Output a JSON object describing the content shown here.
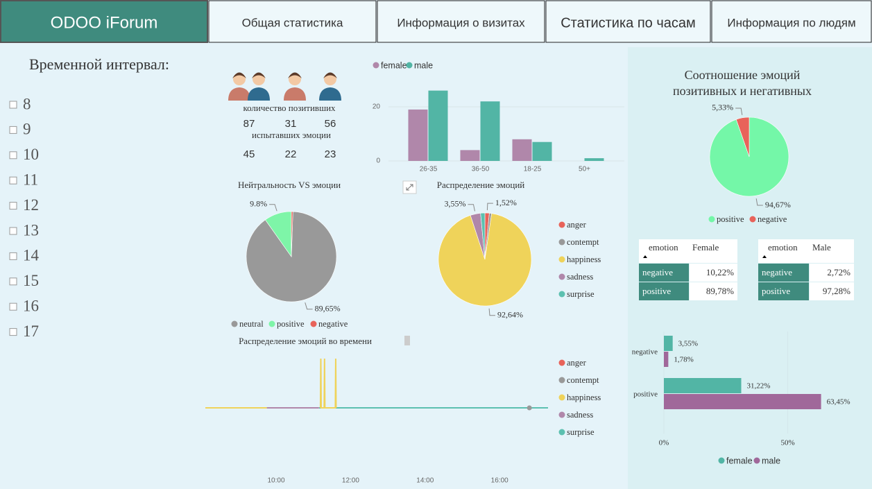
{
  "header": {
    "tabs": [
      "ODOO iForum",
      "Общая статистика",
      "Информация о визитах",
      "Статистика по часам",
      "Информация по людям"
    ]
  },
  "sidebar": {
    "title": "Временной интервал:",
    "hours": [
      8,
      9,
      10,
      11,
      12,
      13,
      14,
      15,
      16,
      17
    ]
  },
  "people": {
    "line1": "количество позитивших",
    "row1": [
      87,
      31,
      56
    ],
    "line2": "испытавших эмоции",
    "row2": [
      45,
      22,
      23
    ]
  },
  "tables": [
    {
      "columns": [
        "emotion",
        "Female"
      ],
      "rows": [
        [
          "negative",
          "10,22%"
        ],
        [
          "positive",
          "89,78%"
        ]
      ]
    },
    {
      "columns": [
        "emotion",
        "Male"
      ],
      "rows": [
        [
          "negative",
          "2,72%"
        ],
        [
          "positive",
          "97,28%"
        ]
      ]
    }
  ],
  "chart_data": [
    {
      "type": "bar",
      "categories": [
        "26-35",
        "36-50",
        "18-25",
        "50+"
      ],
      "series": [
        {
          "name": "female",
          "color": "#b087aa",
          "values": [
            19,
            4,
            8,
            0
          ]
        },
        {
          "name": "male",
          "color": "#52b5a5",
          "values": [
            26,
            22,
            7,
            1
          ]
        }
      ],
      "ylim": [
        0,
        30
      ],
      "yticks": [
        0,
        20
      ],
      "grid": true,
      "legend": "top"
    },
    {
      "type": "pie",
      "title": "Нейтральность VS эмоции",
      "categories": [
        "neutral",
        "positive",
        "negative"
      ],
      "values": [
        89.65,
        9.8,
        0.55
      ],
      "value_labels": [
        "89,65%",
        "9.8%",
        null
      ],
      "colors": [
        "#999999",
        "#7ef5a8",
        "#e8635a"
      ],
      "legend": "bottom"
    },
    {
      "type": "pie",
      "title": "Распределение эмоций",
      "categories": [
        "anger",
        "contempt",
        "happiness",
        "sadness",
        "surprise"
      ],
      "values": [
        1.52,
        0.79,
        92.64,
        3.55,
        1.5
      ],
      "value_labels": [
        "1,52%",
        null,
        "92,64%",
        "3,55%",
        null
      ],
      "colors": [
        "#e8635a",
        "#999999",
        "#efd35a",
        "#b087aa",
        "#5cc0b0"
      ],
      "legend": "right"
    },
    {
      "type": "line",
      "title": "Распределение эмоций во времени",
      "x": [
        8.1,
        9.0,
        9.75,
        11.15,
        11.19,
        11.2,
        11.21,
        11.29,
        11.3,
        11.31,
        11.59,
        11.6,
        11.61,
        13,
        15,
        16.8,
        17.3
      ],
      "series": [
        {
          "name": "anger",
          "color": "#e8635a",
          "values": [
            null,
            null,
            null,
            null,
            null,
            null,
            null,
            null,
            null,
            null,
            null,
            null,
            null,
            null,
            null,
            null,
            null
          ]
        },
        {
          "name": "contempt",
          "color": "#999999",
          "values": [
            null,
            null,
            null,
            null,
            null,
            null,
            null,
            null,
            null,
            null,
            null,
            null,
            null,
            null,
            null,
            0,
            null
          ]
        },
        {
          "name": "happiness",
          "color": "#efd35a",
          "values": [
            0,
            0,
            0,
            null,
            0,
            1,
            0,
            0,
            1,
            0,
            0,
            1,
            0,
            null,
            null,
            null,
            null
          ]
        },
        {
          "name": "sadness",
          "color": "#b087aa",
          "values": [
            null,
            null,
            0,
            0,
            null,
            null,
            null,
            null,
            null,
            null,
            null,
            null,
            null,
            null,
            null,
            null,
            null
          ]
        },
        {
          "name": "surprise",
          "color": "#5cc0b0",
          "values": [
            null,
            null,
            null,
            0,
            0,
            0,
            0,
            0,
            0,
            0,
            0,
            0,
            0,
            0,
            0,
            0,
            0
          ]
        }
      ],
      "xlim": [
        8.1,
        17.3
      ],
      "xticks": [
        {
          "value": 10,
          "label": "10:00"
        },
        {
          "value": 12,
          "label": "12:00"
        },
        {
          "value": 14,
          "label": "14:00"
        },
        {
          "value": 16,
          "label": "16:00"
        }
      ],
      "ylim": [
        0,
        1
      ],
      "legend": "right"
    },
    {
      "type": "pie",
      "title": [
        "Соотношение эмоций",
        "позитивных и негативных"
      ],
      "categories": [
        "positive",
        "negative"
      ],
      "values": [
        94.67,
        5.33
      ],
      "value_labels": [
        "94,67%",
        "5,33%"
      ],
      "colors": [
        "#74f7a8",
        "#e8635a"
      ],
      "legend": "bottom"
    },
    {
      "type": "hbar",
      "categories": [
        "negative",
        "positive"
      ],
      "series": [
        {
          "name": "female",
          "color": "#52b5a5",
          "values": [
            3.55,
            31.22
          ],
          "value_labels": [
            "3,55%",
            "31,22%"
          ]
        },
        {
          "name": "male",
          "color": "#a0689a",
          "values": [
            1.78,
            63.45
          ],
          "value_labels": [
            "1,78%",
            "63,45%"
          ]
        }
      ],
      "xlim": [
        0,
        70
      ],
      "xticks": [
        {
          "value": 0,
          "label": "0%"
        },
        {
          "value": 50,
          "label": "50%"
        }
      ],
      "legend": "bottom"
    }
  ]
}
